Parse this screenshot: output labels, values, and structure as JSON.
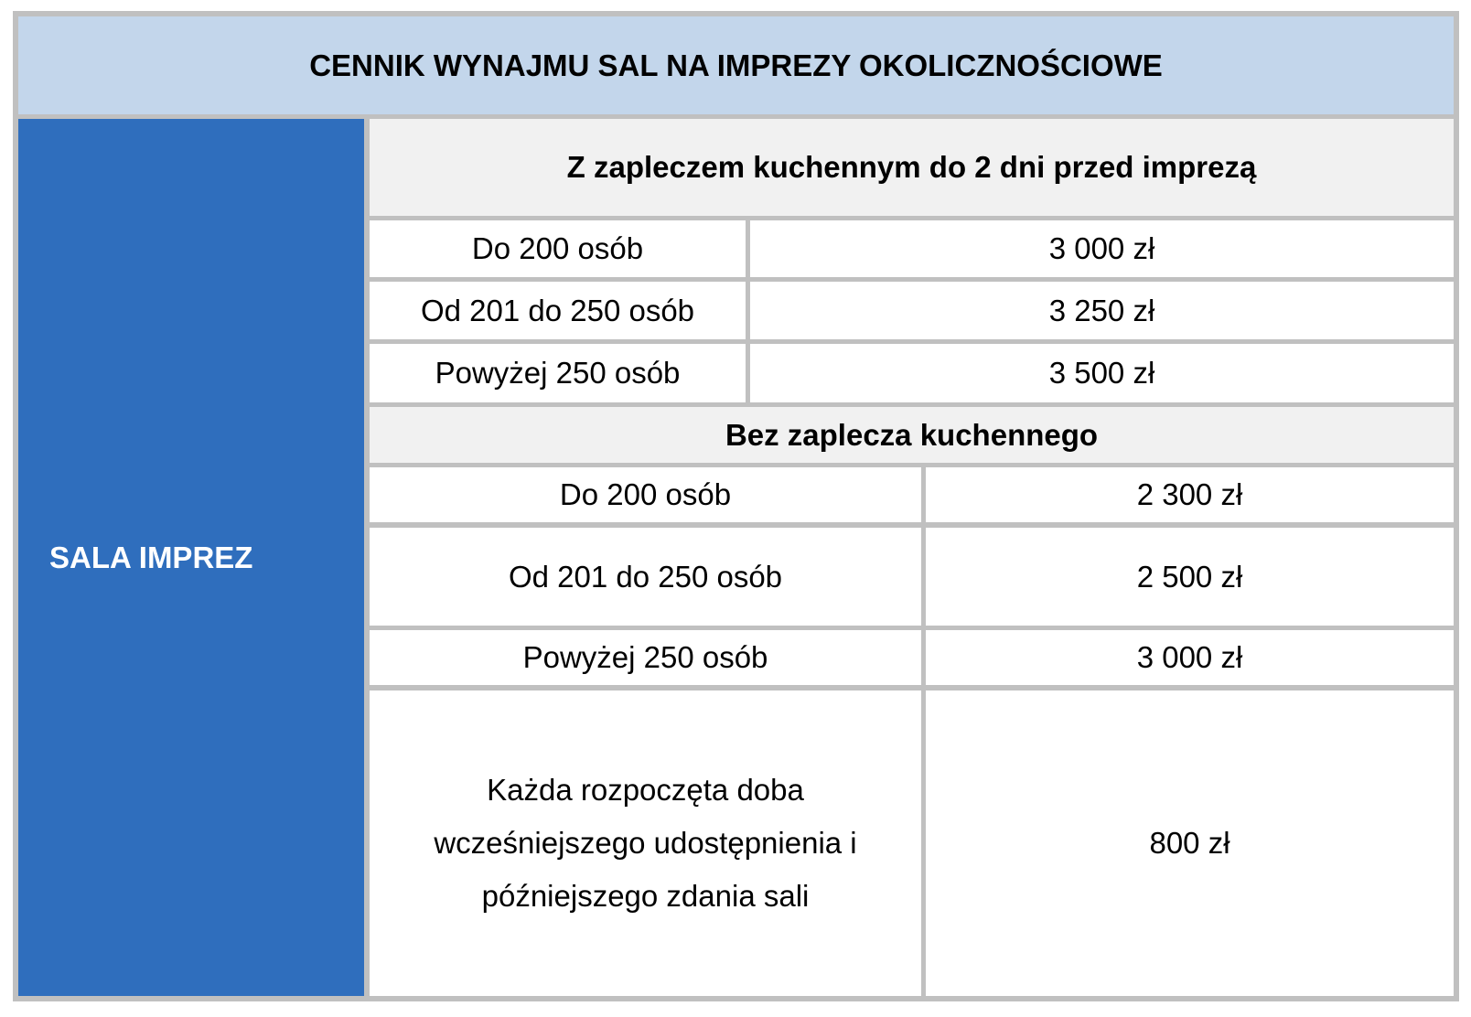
{
  "title": "CENNIK WYNAJMU SAL NA IMPREZY OKOLICZNOŚCIOWE",
  "hall_name": "SALA IMPREZ",
  "sections": [
    {
      "heading": "Z zapleczem kuchennym do 2 dni przed imprezą",
      "rows": [
        {
          "label": "Do 200 osób",
          "price": "3 000 zł"
        },
        {
          "label": "Od 201 do 250 osób",
          "price": "3 250 zł"
        },
        {
          "label": "Powyżej 250 osób",
          "price": "3 500 zł"
        }
      ]
    },
    {
      "heading": "Bez zaplecza kuchennego",
      "rows": [
        {
          "label": "Do 200 osób",
          "price": "2 300 zł"
        },
        {
          "label": "Od 201 do 250 osób",
          "price": "2 500 zł"
        },
        {
          "label": "Powyżej 250 osób",
          "price": "3 000 zł"
        }
      ]
    }
  ],
  "extra_day": {
    "label": "Każda rozpoczęta doba\nwcześniejszego udostępnienia  i\npóźniejszego zdania sali",
    "price": "800 zł"
  },
  "colors": {
    "header_bg": "#c3d6eb",
    "side_bg": "#2f6ebd",
    "border": "#c0c0c0",
    "subheader_bg": "#f1f1f1"
  }
}
